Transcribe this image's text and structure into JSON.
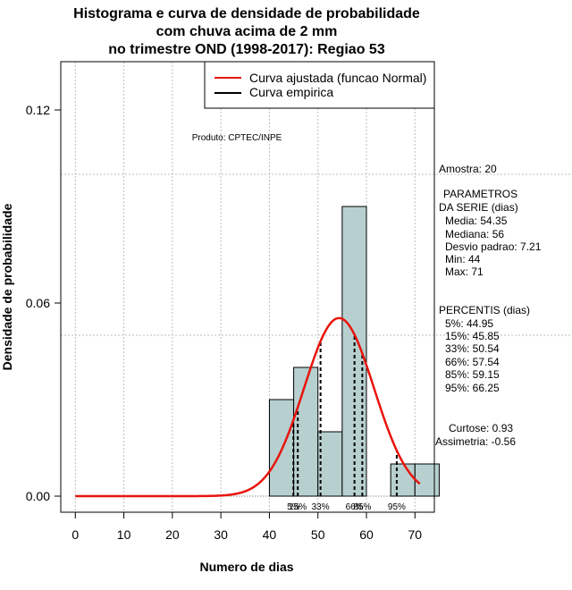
{
  "chart_data": {
    "type": "bar",
    "title_lines": [
      "Histograma e curva de densidade de probabilidade",
      "com chuva acima de 2 mm",
      "no trimestre OND (1998-2017): Regiao 53"
    ],
    "xlabel": "Numero de dias",
    "ylabel": "Densidade de probabilidade",
    "xlim": [
      -3,
      74
    ],
    "ylim": [
      -0.005,
      0.135
    ],
    "x_ticks": [
      0,
      10,
      20,
      30,
      40,
      50,
      60,
      70
    ],
    "y_ticks": [
      0.0,
      0.06,
      0.12
    ],
    "y_tick_labels": [
      "0.00",
      "0.06",
      "0.12"
    ],
    "y_grid_extra": [
      0.05,
      0.1
    ],
    "histogram": {
      "bins": [
        {
          "from": 40,
          "to": 45,
          "density": 0.03
        },
        {
          "from": 45,
          "to": 50,
          "density": 0.04
        },
        {
          "from": 50,
          "to": 55,
          "density": 0.02
        },
        {
          "from": 55,
          "to": 60,
          "density": 0.09
        },
        {
          "from": 60,
          "to": 65,
          "density": 0.0
        },
        {
          "from": 65,
          "to": 70,
          "density": 0.01
        },
        {
          "from": 70,
          "to": 75,
          "density": 0.01
        }
      ],
      "fill_color": "#b7cfcf"
    },
    "fitted_curve": {
      "name": "Curva ajustada (funcao Normal)",
      "distribution": "normal",
      "mean": 54.35,
      "sd": 7.21,
      "x_start": 0,
      "x_end": 71,
      "color": "#e8140c"
    },
    "empirical_curve": {
      "name": "Curva empirica",
      "color": "#000000"
    },
    "percentiles": [
      {
        "label": "5%",
        "value": 44.95
      },
      {
        "label": "15%",
        "value": 45.85
      },
      {
        "label": "33%",
        "value": 50.54
      },
      {
        "label": "66%",
        "value": 57.54
      },
      {
        "label": "85%",
        "value": 59.15
      },
      {
        "label": "95%",
        "value": 66.25
      }
    ],
    "credit": "Produto: CPTEC/INPE"
  },
  "legend": {
    "items": [
      {
        "label": "Curva ajustada (funcao Normal)",
        "color": "#e8140c"
      },
      {
        "label": "Curva empirica",
        "color": "#000000"
      }
    ]
  },
  "side_panel": {
    "sample": "Amostra: 20",
    "params_title_1": "PARAMETROS",
    "params_title_2": "DA SERIE (dias)",
    "params": [
      "Media: 54.35",
      "Mediana: 56",
      "Desvio padrao: 7.21",
      "Min: 44",
      "Max: 71"
    ],
    "pct_title": "PERCENTIS (dias)",
    "pcts": [
      "5%: 44.95",
      "15%: 45.85",
      "33%: 50.54",
      "66%: 57.54",
      "85%: 59.15",
      "95%: 66.25"
    ],
    "kurtosis": "Curtose: 0.93",
    "skewness": "Assimetria: -0.56"
  }
}
